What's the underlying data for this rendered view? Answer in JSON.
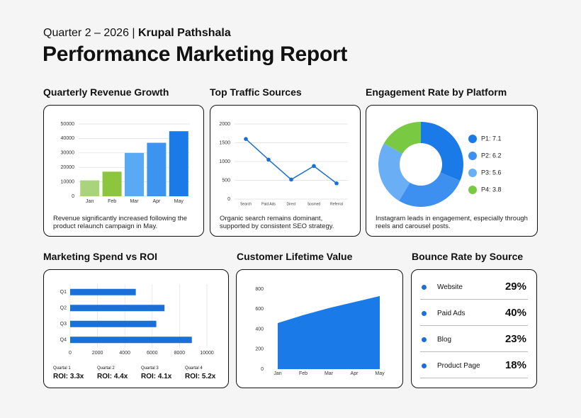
{
  "header": {
    "subtitle_prefix": "Quarter 2 – 2026 |",
    "author": "Krupal Pathshala",
    "title": "Performance Marketing Report"
  },
  "chart_data": [
    {
      "type": "bar",
      "title": "Quarterly Revenue Growth",
      "caption": "Revenue significantly increased following the product relaunch campaign in May.",
      "categories": [
        "Jan",
        "Feb",
        "Mar",
        "Apr",
        "May"
      ],
      "values": [
        11000,
        17000,
        30000,
        37000,
        45000
      ],
      "colors": [
        "#a9d47c",
        "#8cc63f",
        "#5aa9f5",
        "#3d94f0",
        "#1a7ae8"
      ],
      "ylim": [
        0,
        50000
      ],
      "yticks": [
        0,
        10000,
        20000,
        30000,
        40000,
        50000
      ],
      "grid": true
    },
    {
      "type": "line",
      "title": "Top Traffic Sources",
      "caption": "Organic search remains dominant, supported by consistent SEO strategy.",
      "categories": [
        "Search",
        "Paid Ads",
        "Direct",
        "Sosmed",
        "Referral"
      ],
      "values": [
        1600,
        1050,
        520,
        880,
        420
      ],
      "color": "#1a6fd0",
      "ylim": [
        0,
        2000
      ],
      "yticks": [
        0,
        500,
        1000,
        1500,
        2000
      ],
      "grid": true
    },
    {
      "type": "donut",
      "title": "Engagement Rate by Platform",
      "caption": "Instagram leads in engagement, especially through reels and carousel posts.",
      "categories": [
        "P1: 7.1",
        "P2: 6.2",
        "P3: 5.6",
        "P4: 3.8"
      ],
      "values": [
        7.1,
        6.2,
        5.6,
        3.8
      ],
      "colors": [
        "#1a7ae8",
        "#3d8ff0",
        "#6aaef5",
        "#7ac943"
      ],
      "legend": "right"
    },
    {
      "type": "hbar",
      "title": "Marketing Spend vs ROI",
      "categories": [
        "Q1",
        "Q2",
        "Q3",
        "Q4"
      ],
      "values": [
        4800,
        6900,
        6300,
        8900
      ],
      "color": "#1a6fd8",
      "xlim": [
        0,
        10000
      ],
      "xticks": [
        0,
        2000,
        4000,
        6000,
        8000,
        10000
      ],
      "grid": true
    },
    {
      "type": "area",
      "title": "Customer Lifetime Value",
      "categories": [
        "Jan",
        "Feb",
        "Mar",
        "Apr",
        "May"
      ],
      "values": [
        460,
        540,
        610,
        670,
        730
      ],
      "color": "#1a7ae8",
      "ylim": [
        0,
        800
      ],
      "yticks": [
        0,
        200,
        400,
        600,
        800
      ]
    }
  ],
  "roi": [
    {
      "label": "Quartal 1",
      "value": "ROI: 3.3x"
    },
    {
      "label": "Quartal 2",
      "value": "ROI: 4.4x"
    },
    {
      "label": "Quartal 3",
      "value": "ROI: 4.1x"
    },
    {
      "label": "Quartal 4",
      "value": "ROI: 5.2x"
    }
  ],
  "bounce_rate": {
    "title": "Bounce Rate by Source",
    "rows": [
      {
        "source": "Website",
        "rate": "29%"
      },
      {
        "source": "Paid Ads",
        "rate": "40%"
      },
      {
        "source": "Blog",
        "rate": "23%"
      },
      {
        "source": "Product Page",
        "rate": "18%"
      }
    ]
  }
}
